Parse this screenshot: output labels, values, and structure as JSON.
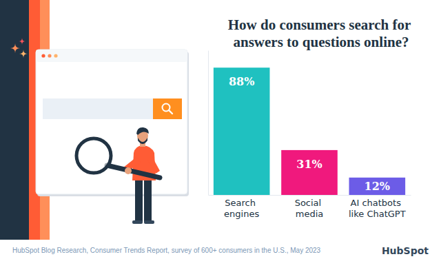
{
  "chart_data": {
    "type": "bar",
    "title": "How do consumers search for answers to questions online?",
    "categories": [
      "Search engines",
      "Social media",
      "AI chatbots like ChatGPT"
    ],
    "values": [
      88,
      31,
      12
    ],
    "value_labels": [
      "88%",
      "31%",
      "12%"
    ],
    "colors": [
      "#1fc1c0",
      "#f0197d",
      "#6c5ce7"
    ],
    "ylim": [
      0,
      100
    ],
    "data_labels": true,
    "tick_labels": "x",
    "grid": false,
    "source": "HubSpot Blog Research, Consumer Trends Report, survey of 600+ consumers in the U.S., May 2023",
    "logo": "HubSpot"
  }
}
